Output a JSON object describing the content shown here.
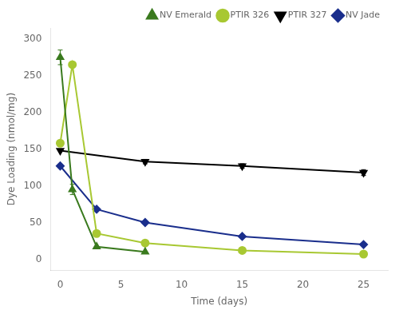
{
  "chart_data": {
    "type": "line",
    "x_label": "Time (days)",
    "y_label": "Dye Loading (nmol/mg)",
    "series": [
      {
        "name": "NV Emerald",
        "color": "#3a7a1e",
        "marker": "triangle-up",
        "line_style": "solid",
        "x": [
          0,
          1,
          3,
          7
        ],
        "values": [
          275,
          95,
          17,
          10
        ],
        "yerr": [
          10,
          7,
          null,
          null
        ]
      },
      {
        "name": "PTIR 326",
        "color": "#a8c832",
        "marker": "circle",
        "line_style": "solid",
        "x": [
          0,
          1,
          3,
          7,
          15,
          25
        ],
        "values": [
          158,
          265,
          35,
          22,
          12,
          7
        ]
      },
      {
        "name": "PTIR 327",
        "color": "#000000",
        "marker": "triangle-down",
        "line_style": "solid",
        "x": [
          0,
          7,
          15,
          25
        ],
        "values": [
          148,
          133,
          127,
          118
        ],
        "yerr": [
          null,
          3,
          3,
          4
        ]
      },
      {
        "name": "NV Jade",
        "color": "#1a2e8c",
        "marker": "diamond",
        "line_style": "solid",
        "x": [
          0,
          3,
          7,
          15,
          25
        ],
        "values": [
          127,
          68,
          50,
          31,
          20
        ]
      }
    ],
    "xlim": [
      -0.8,
      27
    ],
    "ylim": [
      -15,
      315
    ],
    "xticks": [
      0,
      5,
      10,
      15,
      20,
      25
    ],
    "yticks": [
      0,
      50,
      100,
      150,
      200,
      250,
      300
    ],
    "grid": false,
    "legend": "upper right"
  }
}
